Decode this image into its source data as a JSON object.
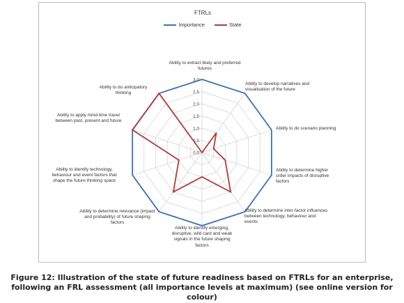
{
  "chart_data": {
    "type": "radar",
    "title": "FTRLs",
    "categories": [
      "Ability to extract likely and preferred futures",
      "Ability to develop narratives and visualisation of the future",
      "Ability to do scenario planning",
      "Ability to determine higher order impacts of disruptive factors",
      "Ability to determine inter-factor influences between technology, behaviour and events",
      "Ability to identify emerging, disruptive, wild card and weak signals in the future shaping factors",
      "Ability to determine relevance (impact and probability) of future shaping factors",
      "Ability to identify technology, behaviour and event factors that shape the future thinking space",
      "Ability to apply mind-time travel between past, present and future",
      "Ability to do anticipatory thinking"
    ],
    "series": [
      {
        "name": "Importance",
        "color": "#3d6fb5",
        "values": [
          3,
          3,
          3,
          3,
          3,
          3,
          3,
          3,
          3,
          3
        ]
      },
      {
        "name": "State",
        "color": "#b03a3a",
        "values": [
          0,
          1,
          0.5,
          1,
          2,
          1,
          2,
          1,
          3,
          3
        ]
      }
    ],
    "rticks": [
      "0.0",
      "0.5",
      "1.0",
      "1.5",
      "2.0",
      "2.5",
      "3.0"
    ],
    "rlim": [
      0,
      3
    ],
    "legend_position": "top"
  },
  "caption": {
    "line1": "Figure 12: Illustration of the state of future readiness based on FTRLs for an enterprise,",
    "line2": "following an FRL assessment (all importance levels at maximum) (see online version for colour)"
  }
}
